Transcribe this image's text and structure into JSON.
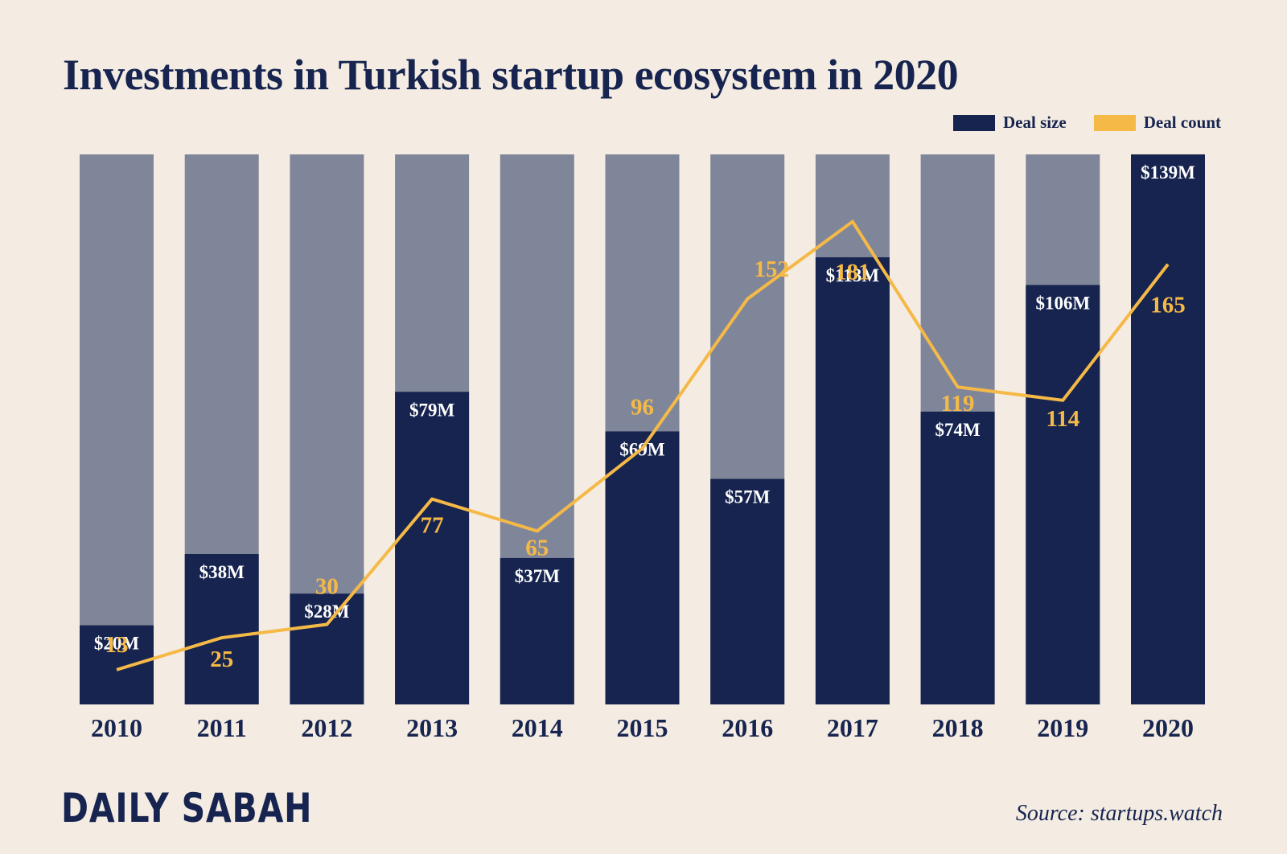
{
  "title": "Investments in Turkish startup ecosystem in 2020",
  "legend": {
    "deal_size": "Deal size",
    "deal_count": "Deal count"
  },
  "brand": "DAILY SABAH",
  "source": "Source: startups.watch",
  "colors": {
    "background": "#f4ece2",
    "bar_track": "#808699",
    "deal_size": "#16244f",
    "deal_count": "#f5b947",
    "label_light": "#ffffff"
  },
  "chart_data": {
    "type": "bar",
    "title": "Investments in Turkish startup ecosystem in 2020",
    "categories": [
      "2010",
      "2011",
      "2012",
      "2013",
      "2014",
      "2015",
      "2016",
      "2017",
      "2018",
      "2019",
      "2020"
    ],
    "ylim": [
      0,
      139
    ],
    "grid": false,
    "legend_position": "top-right",
    "series": [
      {
        "name": "Deal size",
        "type": "bar",
        "values": [
          20,
          38,
          28,
          79,
          37,
          69,
          57,
          113,
          74,
          106,
          139
        ],
        "labels": [
          "$20M",
          "$38M",
          "$28M",
          "$79M",
          "$37M",
          "$69M",
          "$57M",
          "$113M",
          "$74M",
          "$106M",
          "$139M"
        ]
      },
      {
        "name": "Deal count",
        "type": "line",
        "values": [
          13,
          25,
          30,
          77,
          65,
          96,
          152,
          181,
          119,
          114,
          165
        ],
        "labels": [
          "13",
          "25",
          "30",
          "77",
          "65",
          "96",
          "152",
          "181",
          "119",
          "114",
          "165"
        ]
      }
    ]
  }
}
